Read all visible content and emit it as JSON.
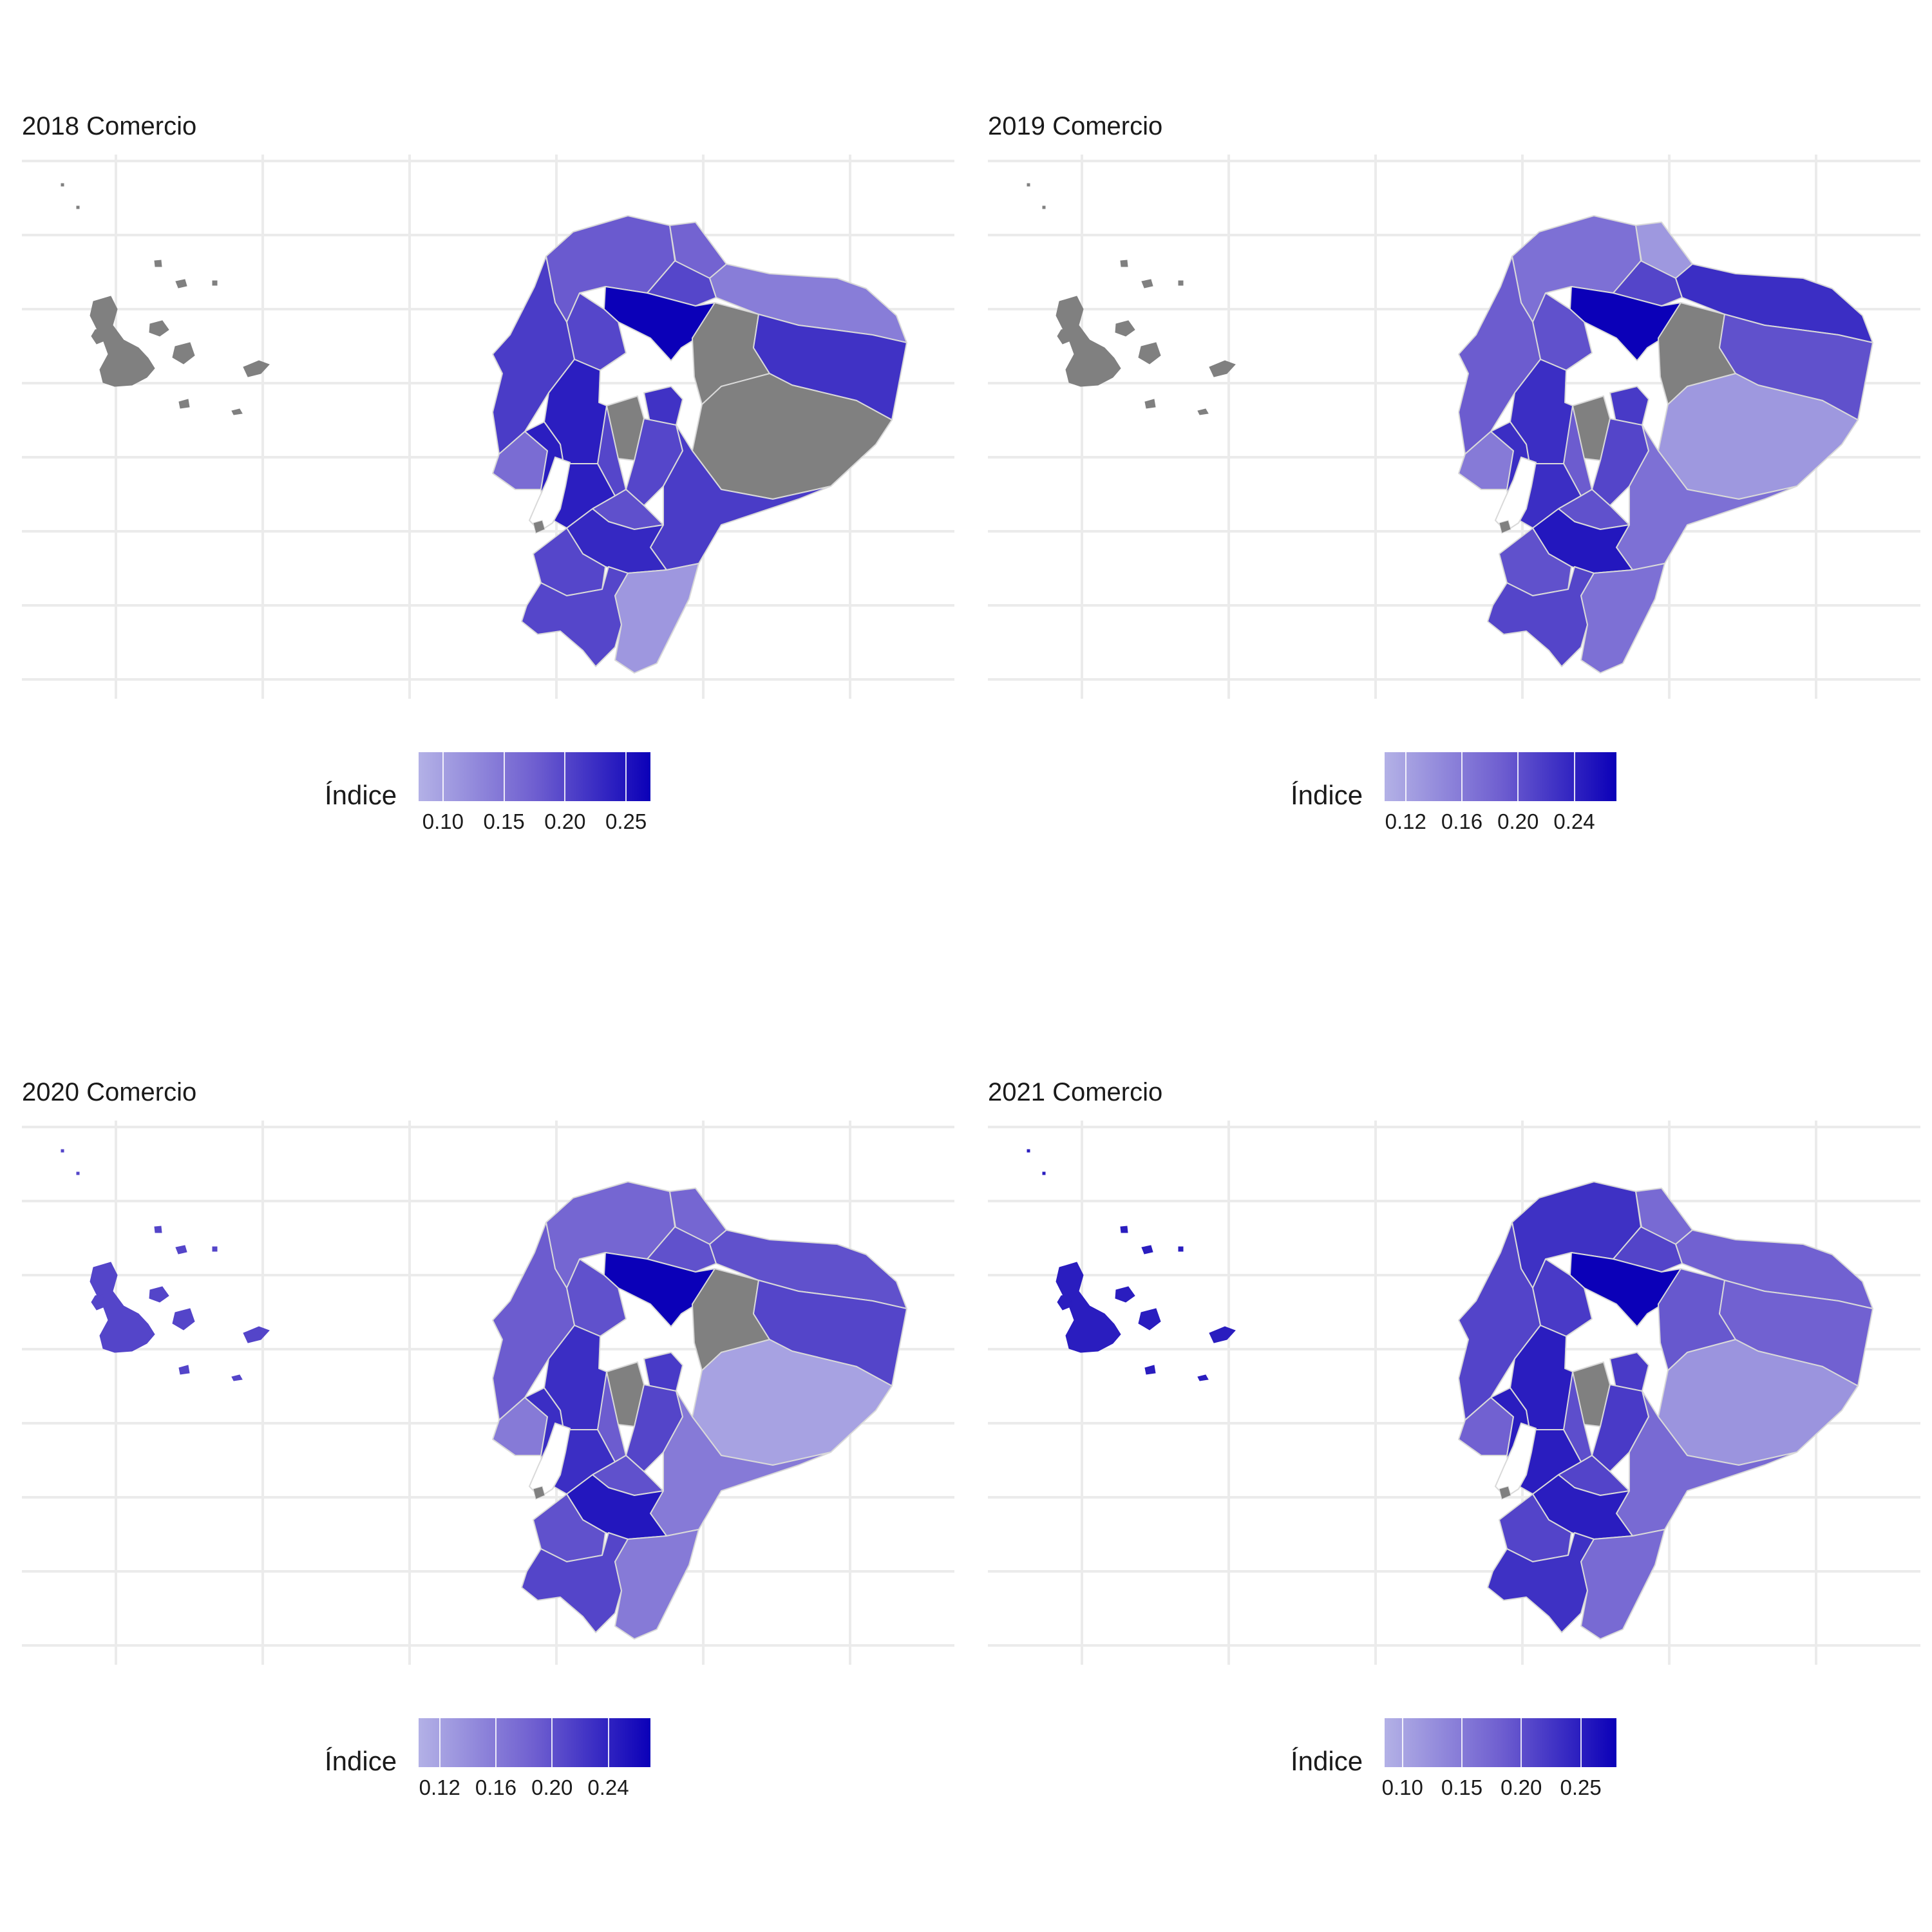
{
  "colors": {
    "low": "#b3b1e6",
    "mid": "#6f5fd0",
    "high": "#0b00b8",
    "missing": "#808080",
    "border": "#d9d9d9",
    "grid": "#ebebeb"
  },
  "panels": [
    {
      "title": "2018 Comercio",
      "legend": {
        "title": "Índice",
        "min": 0.08,
        "max": 0.27,
        "ticks": [
          "0.10",
          "0.15",
          "0.20",
          "0.25"
        ]
      },
      "fills": {
        "galapagos": 0.0,
        "esmeraldas": 0.18,
        "carchi": 0.17,
        "imbabura": 0.2,
        "sucumbios": 0.14,
        "pichincha": 0.27,
        "napo": 0.0,
        "orellana": 0.22,
        "manabi": 0.21,
        "santodomingo": 0.2,
        "cotopaxi": 0.0,
        "tungurahua": 0.22,
        "pastaza": 0.0,
        "losrios": 0.24,
        "bolivar": 0.2,
        "chimborazo": 0.2,
        "moronasantiago": 0.21,
        "santaelena": 0.16,
        "guayas": 0.24,
        "canar": 0.19,
        "azuay": 0.23,
        "elOro": 0.2,
        "loja": 0.2,
        "zamora": 0.11
      }
    },
    {
      "title": "2019 Comercio",
      "legend": {
        "title": "Índice",
        "min": 0.105,
        "max": 0.27,
        "ticks": [
          "0.12",
          "0.16",
          "0.20",
          "0.24"
        ]
      },
      "fills": {
        "galapagos": 0.0,
        "esmeraldas": 0.17,
        "carchi": 0.13,
        "imbabura": 0.21,
        "sucumbios": 0.23,
        "pichincha": 0.27,
        "napo": 0.0,
        "orellana": 0.2,
        "manabi": 0.19,
        "santodomingo": 0.2,
        "cotopaxi": 0.0,
        "tungurahua": 0.22,
        "pastaza": 0.13,
        "losrios": 0.23,
        "bolivar": 0.19,
        "chimborazo": 0.21,
        "moronasantiago": 0.17,
        "santaelena": 0.16,
        "guayas": 0.23,
        "canar": 0.2,
        "azuay": 0.25,
        "elOro": 0.2,
        "loja": 0.21,
        "zamora": 0.17
      }
    },
    {
      "title": "2020 Comercio",
      "legend": {
        "title": "Índice",
        "min": 0.105,
        "max": 0.27,
        "ticks": [
          "0.12",
          "0.16",
          "0.20",
          "0.24"
        ]
      },
      "fills": {
        "galapagos": 0.21,
        "esmeraldas": 0.18,
        "carchi": 0.18,
        "imbabura": 0.2,
        "sucumbios": 0.2,
        "pichincha": 0.27,
        "napo": 0.0,
        "orellana": 0.21,
        "manabi": 0.19,
        "santodomingo": 0.2,
        "cotopaxi": 0.0,
        "tungurahua": 0.22,
        "pastaza": 0.12,
        "losrios": 0.23,
        "bolivar": 0.19,
        "chimborazo": 0.21,
        "moronasantiago": 0.16,
        "santaelena": 0.16,
        "guayas": 0.23,
        "canar": 0.2,
        "azuay": 0.25,
        "elOro": 0.2,
        "loja": 0.21,
        "zamora": 0.16
      }
    },
    {
      "title": "2021 Comercio",
      "legend": {
        "title": "Índice",
        "min": 0.085,
        "max": 0.28,
        "ticks": [
          "0.10",
          "0.15",
          "0.20",
          "0.25"
        ]
      },
      "fills": {
        "galapagos": 0.25,
        "esmeraldas": 0.23,
        "carchi": 0.17,
        "imbabura": 0.21,
        "sucumbios": 0.18,
        "pichincha": 0.28,
        "napo": 0.19,
        "orellana": 0.18,
        "manabi": 0.21,
        "santodomingo": 0.22,
        "cotopaxi": 0.0,
        "tungurahua": 0.22,
        "pastaza": 0.12,
        "losrios": 0.25,
        "bolivar": 0.2,
        "chimborazo": 0.22,
        "moronasantiago": 0.17,
        "santaelena": 0.18,
        "guayas": 0.25,
        "canar": 0.21,
        "azuay": 0.25,
        "elOro": 0.21,
        "loja": 0.23,
        "zamora": 0.17
      }
    }
  ]
}
